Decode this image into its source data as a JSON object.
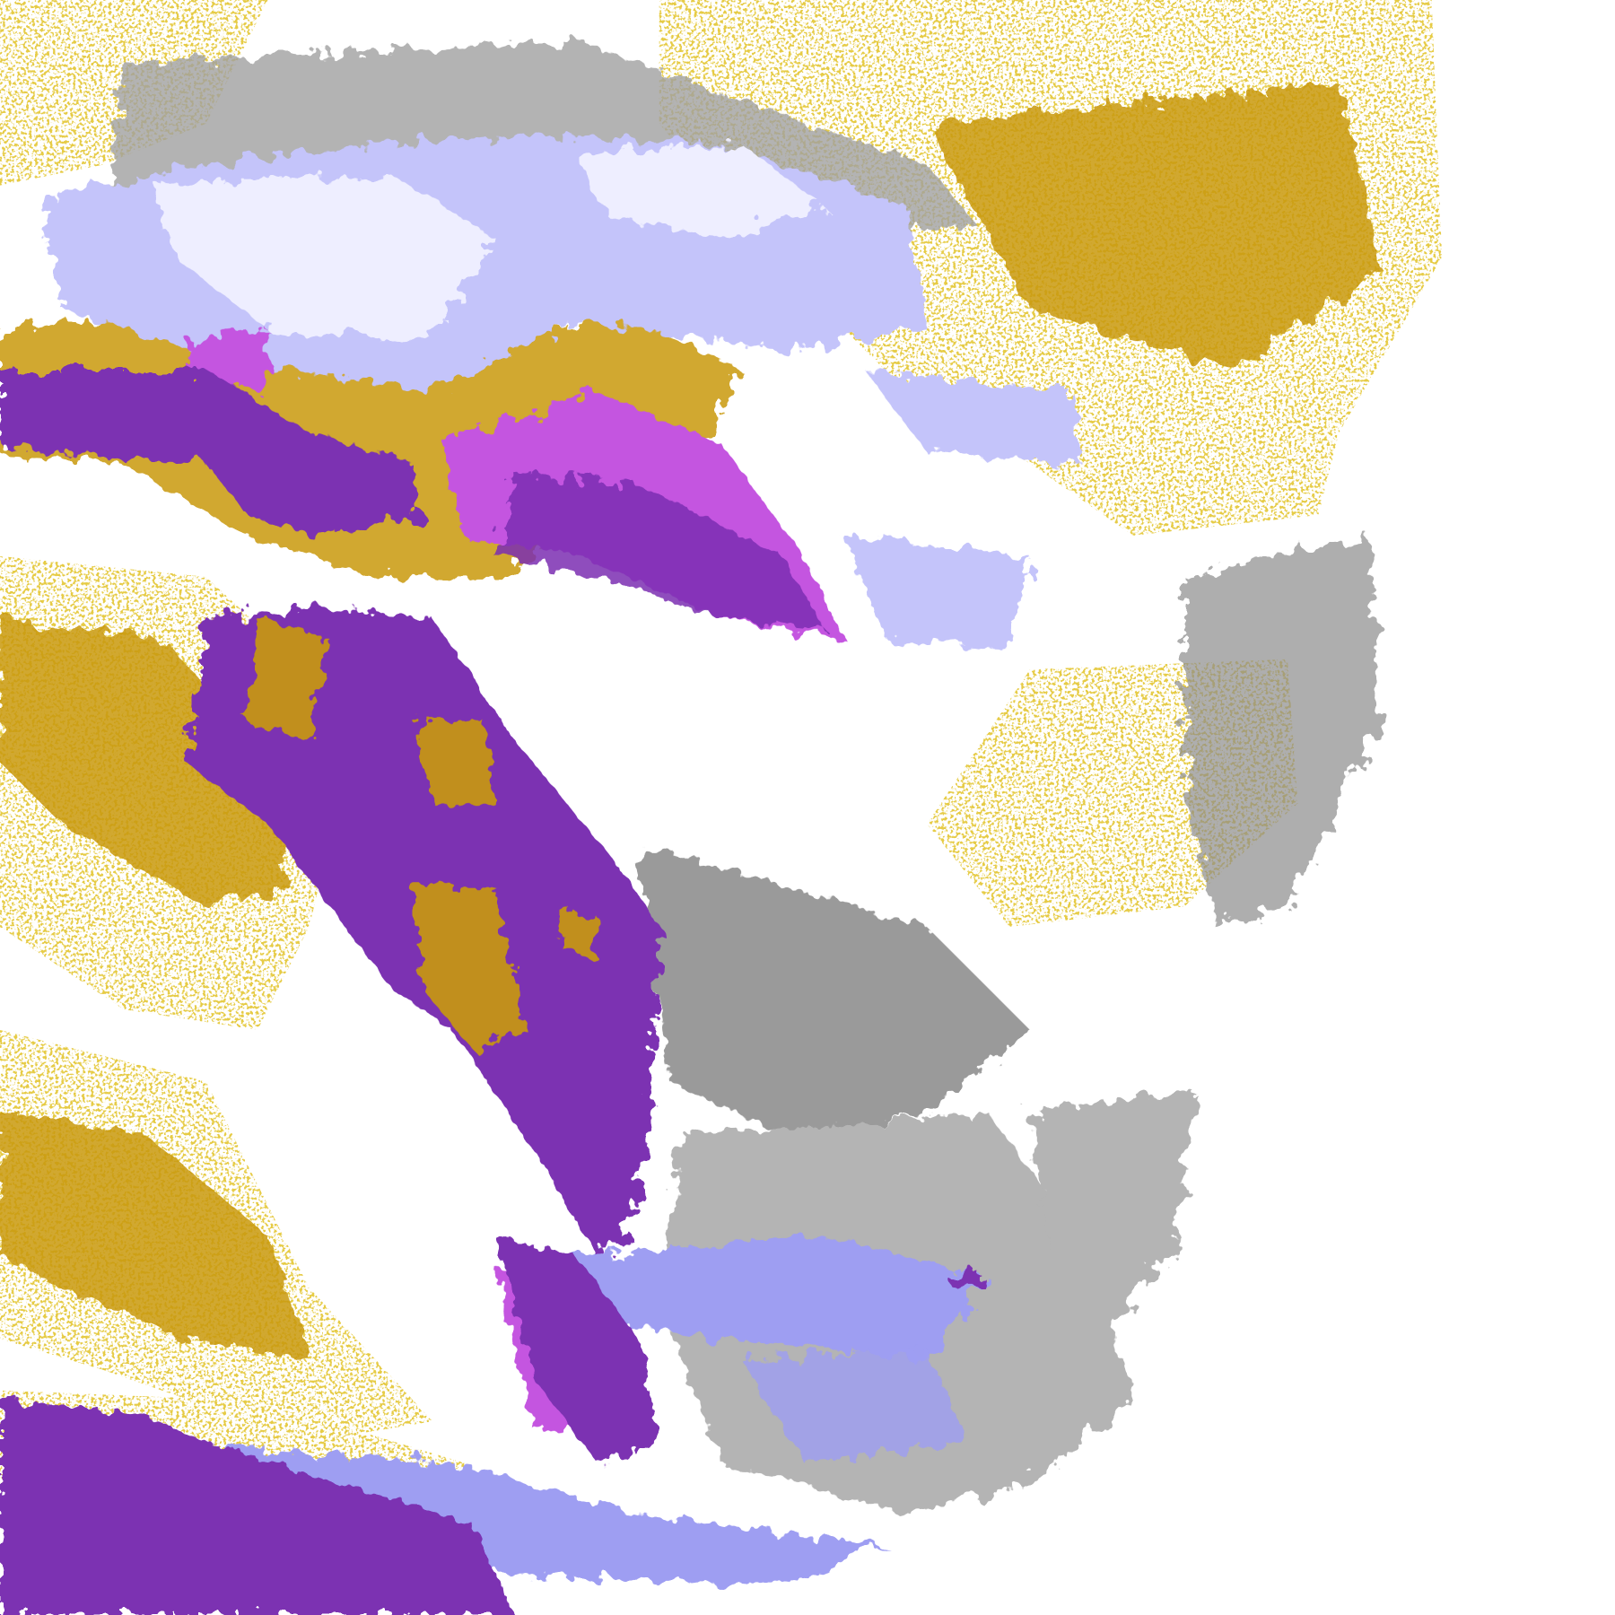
{
  "map": {
    "type": "satellite cloud-classification imagery",
    "palette": {
      "background": "#ffffff",
      "gold": "#c9990f",
      "deep_purple": "#7b30b2",
      "magenta": "#c455e0",
      "lavender_light": "#eeeeff",
      "lavender": "#c4c4fa",
      "periwinkle": "#9e9ef2",
      "gray_dark": "#8c8c8c",
      "gray_light": "#b4b4b4"
    }
  }
}
